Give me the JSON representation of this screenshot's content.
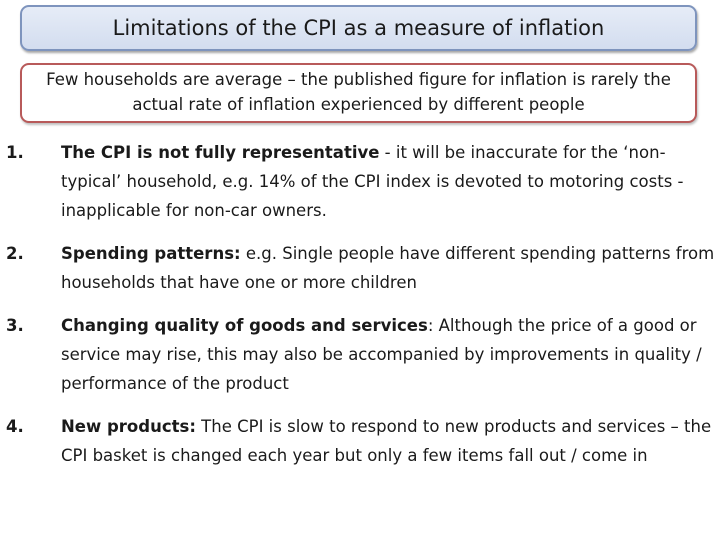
{
  "title": "Limitations of the CPI as a measure of inflation",
  "callout": "Few households are average – the published figure for inflation is rarely the actual rate of inflation experienced by different people",
  "items": [
    {
      "number": "1.",
      "heading": "The CPI is not fully representative",
      "body": " - it will be inaccurate for the ‘non-typical’ household, e.g. 14% of the CPI index is devoted to motoring costs - inapplicable for non-car owners."
    },
    {
      "number": "2.",
      "heading": "Spending patterns:",
      "body": " e.g. Single people have different spending patterns from households that have one or more children"
    },
    {
      "number": "3.",
      "heading": "Changing quality of goods and services",
      "body": ": Although the price of a good or service may rise, this may also be accompanied by improvements in quality / performance of the product"
    },
    {
      "number": "4.",
      "heading": "New products:",
      "body": " The CPI is slow to respond to new products and services – the CPI basket is changed each year but only a few items fall out / come in"
    }
  ]
}
